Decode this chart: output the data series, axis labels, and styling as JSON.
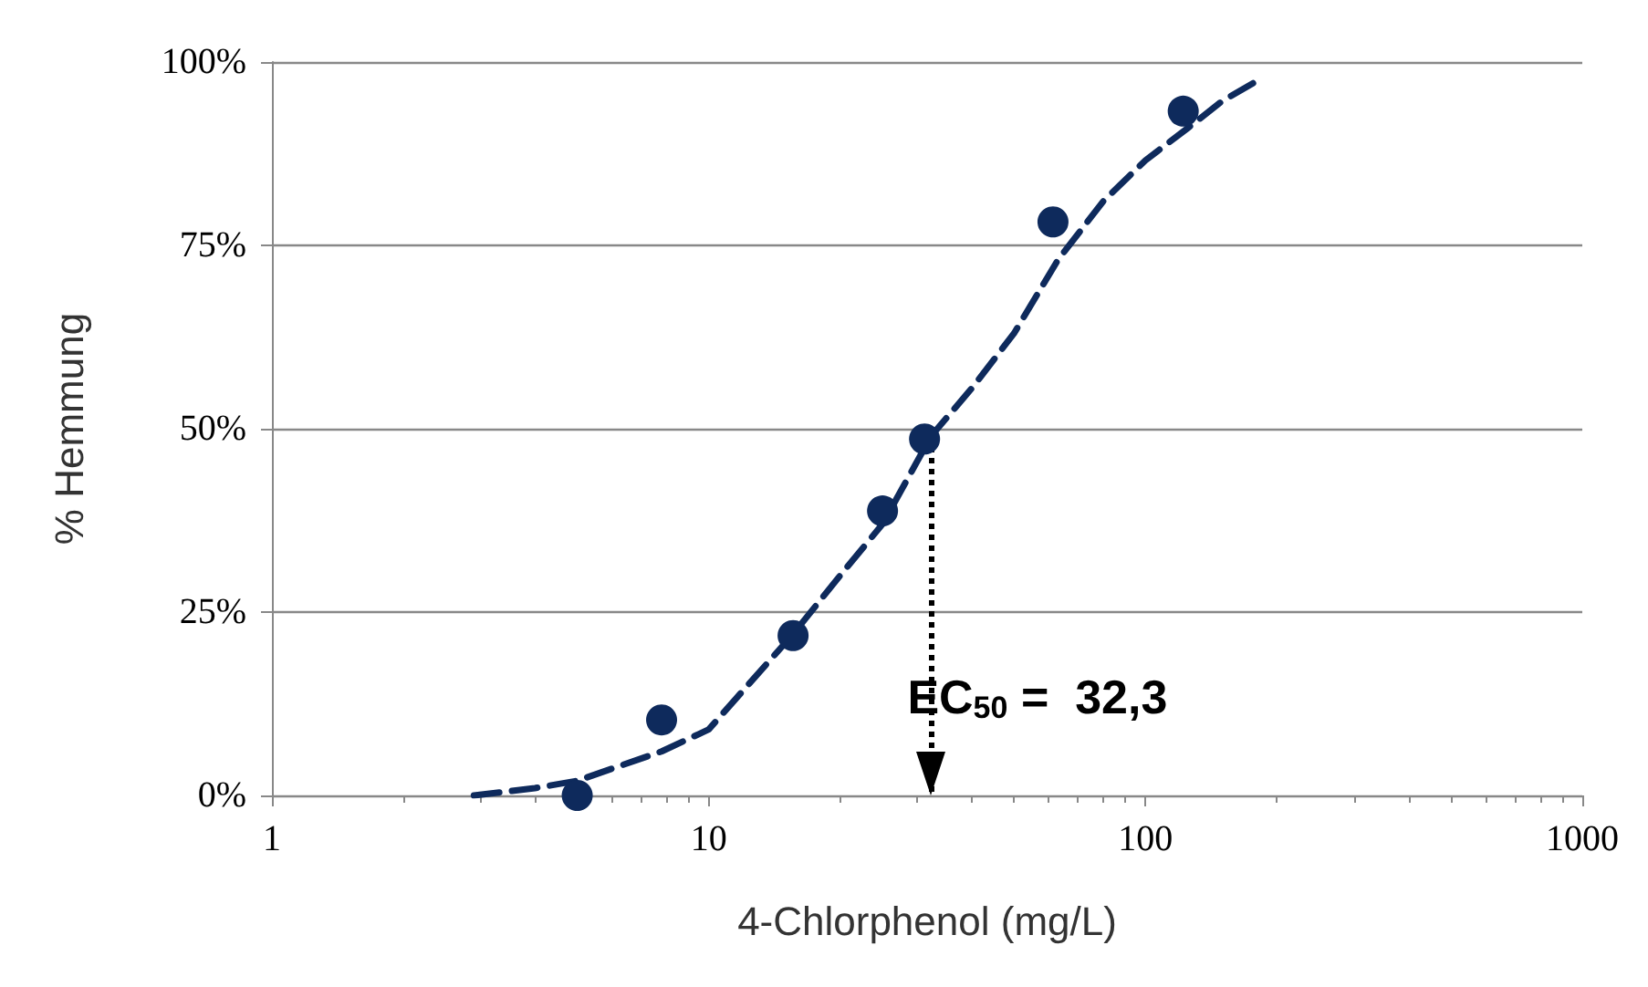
{
  "chart_data": {
    "type": "scatter",
    "xlabel": "4-Chlorphenol (mg/L)",
    "ylabel": "% Hemmung",
    "log": "x",
    "grid": "y",
    "xlim": [
      1,
      1000
    ],
    "xticks": [
      1,
      10,
      100,
      1000
    ],
    "ylim": [
      0,
      100
    ],
    "yticks": [
      {
        "value": 0,
        "label": "0%"
      },
      {
        "value": 25,
        "label": "25%"
      },
      {
        "value": 50,
        "label": "50%"
      },
      {
        "value": 75,
        "label": "75%"
      },
      {
        "value": 100,
        "label": "100%"
      }
    ],
    "series": [
      {
        "marker": "circle",
        "color": "#0e2a5c",
        "x": [
          5,
          7.8,
          15.6,
          25,
          31.2,
          61.4,
          122
        ],
        "values": [
          0,
          10.3,
          21.8,
          38.8,
          48.6,
          78.2,
          93.3
        ]
      },
      {
        "type": "line",
        "marker": "none",
        "line_style": "dashed",
        "color": "#0e2a5c",
        "x": [
          2.9,
          4,
          5,
          7.8,
          10,
          15.6,
          20,
          25,
          32.3,
          40,
          50,
          63,
          80,
          100,
          125,
          150,
          182
        ],
        "values": [
          0,
          1,
          2,
          6,
          9,
          22,
          30,
          37,
          49,
          55.5,
          63,
          73,
          81,
          86.6,
          91,
          94.7,
          97.6
        ]
      }
    ],
    "ref_lines": [
      {
        "axis": "x",
        "value": 32.3,
        "label": "EC$_{50}$ =  32,3",
        "line_style": "dotted",
        "color": "#000000"
      }
    ]
  }
}
